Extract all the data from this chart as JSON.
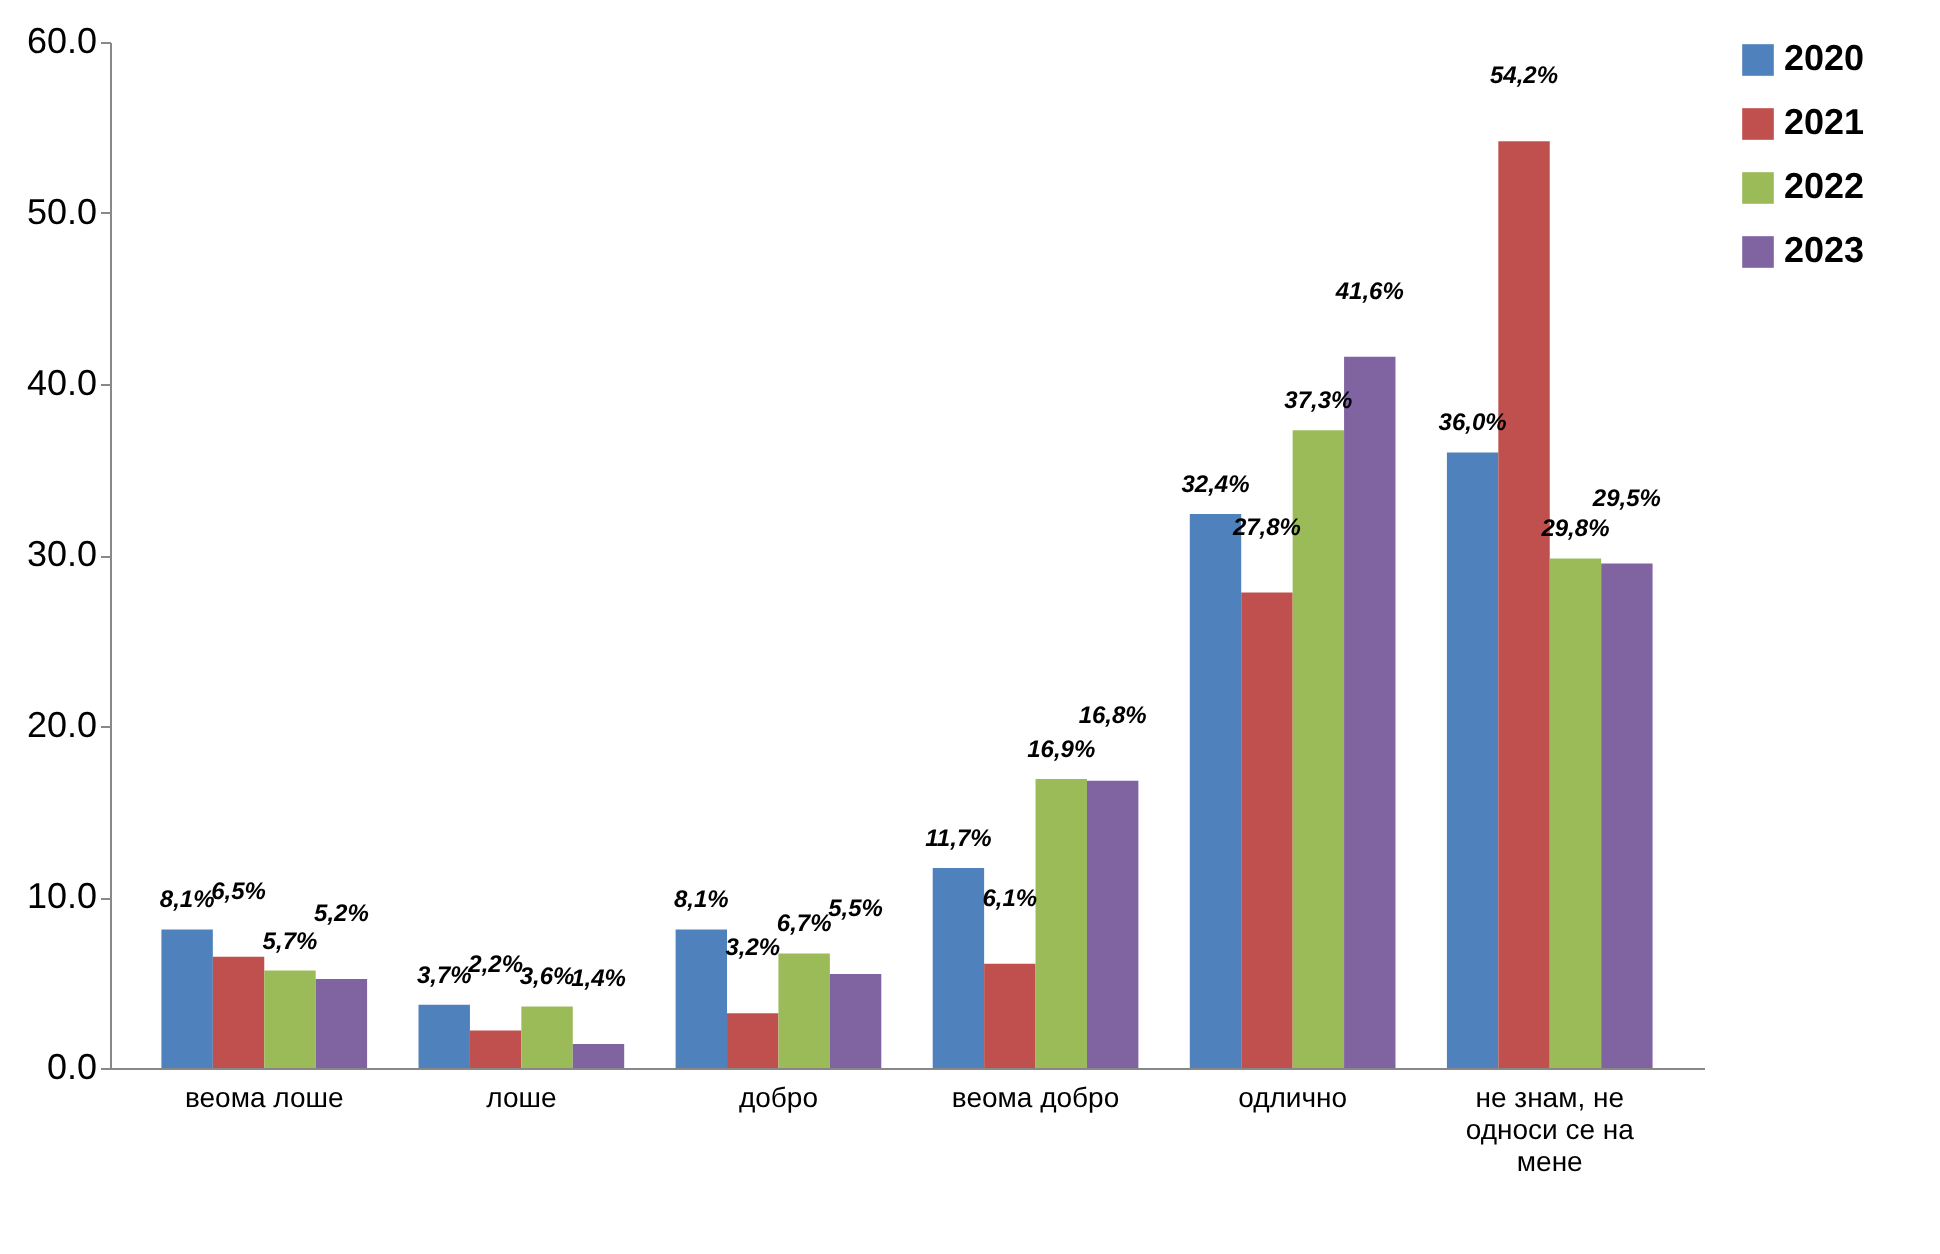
{
  "chart_data": {
    "type": "bar",
    "categories": [
      "веома лоше",
      "лоше",
      "добро",
      "веома добро",
      "одлично",
      "не знам, не односи се на мене"
    ],
    "series": [
      {
        "name": "2020",
        "color": "#4f81bd",
        "values": [
          8.1,
          3.7,
          8.1,
          11.7,
          32.4,
          36.0
        ],
        "value_labels": [
          "8,1%",
          "3,7%",
          "8,1%",
          "11,7%",
          "32,4%",
          "36,0%"
        ]
      },
      {
        "name": "2021",
        "color": "#c0504d",
        "values": [
          6.5,
          2.2,
          3.2,
          6.1,
          27.8,
          54.2
        ],
        "value_labels": [
          "6,5%",
          "2,2%",
          "3,2%",
          "6,1%",
          "27,8%",
          "54,2%"
        ]
      },
      {
        "name": "2022",
        "color": "#9bbb59",
        "values": [
          5.7,
          3.6,
          6.7,
          16.9,
          37.3,
          29.8
        ],
        "value_labels": [
          "5,7%",
          "3,6%",
          "6,7%",
          "16,9%",
          "37,3%",
          "29,8%"
        ]
      },
      {
        "name": "2023",
        "color": "#8064a2",
        "values": [
          5.2,
          1.4,
          5.5,
          16.8,
          41.6,
          29.5
        ],
        "value_labels": [
          "5,2%",
          "1,4%",
          "5,5%",
          "16,8%",
          "41,6%",
          "29,5%"
        ]
      }
    ],
    "ylim": [
      0,
      60
    ],
    "yticks": [
      {
        "value": 0,
        "label": "0.0"
      },
      {
        "value": 10,
        "label": "10.0"
      },
      {
        "value": 20,
        "label": "20.0"
      },
      {
        "value": 30,
        "label": "30.0"
      },
      {
        "value": 40,
        "label": "40.0"
      },
      {
        "value": 50,
        "label": "50.0"
      },
      {
        "value": 60,
        "label": "60.0"
      }
    ],
    "grid": false,
    "legend": "top right"
  }
}
